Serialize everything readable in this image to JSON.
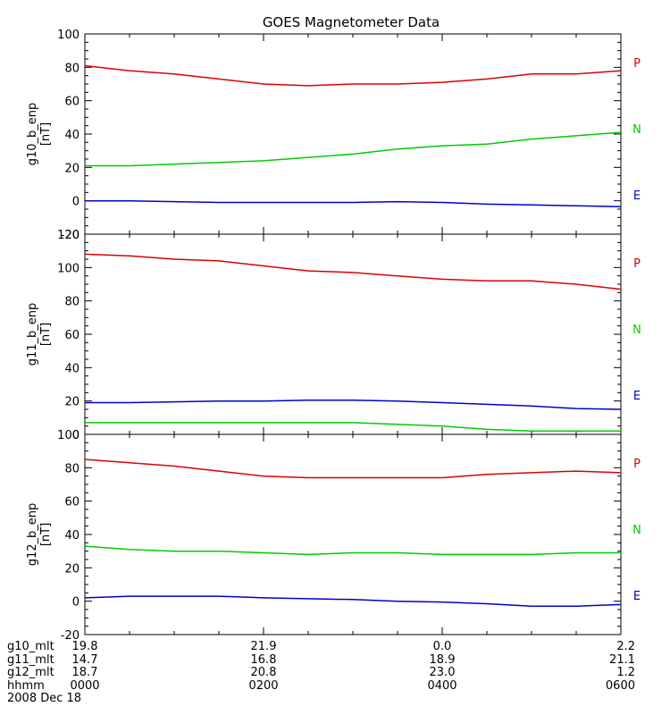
{
  "chart_data": {
    "type": "line",
    "title": "GOES Magnetometer Data",
    "colors": {
      "P": "#dd0000",
      "N": "#00cc00",
      "E": "#0000cc"
    },
    "x": [
      0,
      0.5,
      1,
      1.5,
      2,
      2.5,
      3,
      3.5,
      4,
      4.5,
      5,
      5.5,
      6
    ],
    "panels": [
      {
        "ylabel": "g10_b_enp",
        "unit": "[nT]",
        "ylim": [
          -20,
          100
        ],
        "yticks": [
          "-20",
          "0",
          "20",
          "40",
          "60",
          "80",
          "100"
        ],
        "series": [
          {
            "name": "P",
            "values": [
              81,
              78,
              76,
              73,
              70,
              69,
              70,
              70,
              71,
              73,
              76,
              76,
              78
            ]
          },
          {
            "name": "N",
            "values": [
              21,
              21,
              22,
              23,
              24,
              26,
              28,
              31,
              33,
              34,
              37,
              39,
              41
            ]
          },
          {
            "name": "E",
            "values": [
              0,
              0,
              -0.5,
              -1,
              -1,
              -1,
              -1,
              -0.5,
              -1,
              -2,
              -2.5,
              -3,
              -3.5
            ]
          }
        ]
      },
      {
        "ylabel": "g11_b_enp",
        "unit": "[nT]",
        "ylim": [
          0,
          120
        ],
        "yticks": [
          "0",
          "20",
          "40",
          "60",
          "80",
          "100",
          "120"
        ],
        "series": [
          {
            "name": "P",
            "values": [
              108,
              107,
              105,
              104,
              101,
              98,
              97,
              95,
              93,
              92,
              92,
              90,
              87
            ]
          },
          {
            "name": "E",
            "values": [
              19,
              19,
              19.5,
              20,
              20,
              20.5,
              20.5,
              20,
              19,
              18,
              17,
              15.5,
              15
            ]
          },
          {
            "name": "N",
            "values": [
              7,
              7,
              7,
              7,
              7,
              7,
              7,
              6,
              5,
              3,
              2,
              2,
              2
            ]
          }
        ]
      },
      {
        "ylabel": "g12_b_enp",
        "unit": "[nT]",
        "ylim": [
          -20,
          100
        ],
        "yticks": [
          "-20",
          "0",
          "20",
          "40",
          "60",
          "80",
          "100"
        ],
        "series": [
          {
            "name": "P",
            "values": [
              85,
              83,
              81,
              78,
              75,
              74,
              74,
              74,
              74,
              76,
              77,
              78,
              77
            ]
          },
          {
            "name": "N",
            "values": [
              33,
              31,
              30,
              30,
              29,
              28,
              29,
              29,
              28,
              28,
              28,
              29,
              29
            ]
          },
          {
            "name": "E",
            "values": [
              2,
              3,
              3,
              3,
              2,
              1.5,
              1,
              0,
              -0.5,
              -1.5,
              -3,
              -3,
              -2
            ]
          }
        ]
      }
    ],
    "legend_labels": [
      "P",
      "N",
      "E"
    ],
    "bottom_axis": {
      "row_labels": [
        "g10_mlt",
        "g11_mlt",
        "g12_mlt",
        "hhmm"
      ],
      "ticks": [
        [
          "19.8",
          "21.9",
          "0.0",
          "2.2"
        ],
        [
          "14.7",
          "16.8",
          "18.9",
          "21.1"
        ],
        [
          "18.7",
          "20.8",
          "23.0",
          "1.2"
        ],
        [
          "0000",
          "0200",
          "0400",
          "0600"
        ]
      ],
      "date": "2008 Dec 18"
    }
  }
}
